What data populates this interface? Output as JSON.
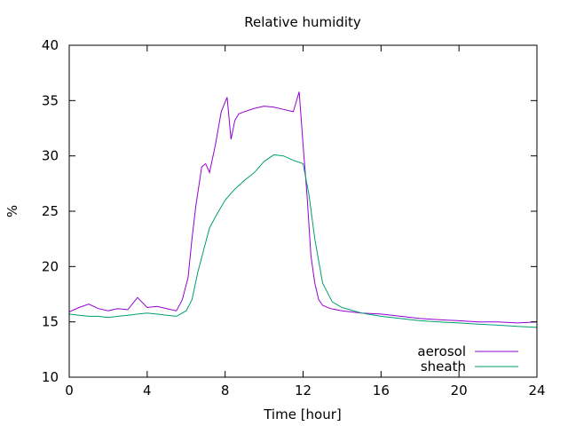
{
  "chart_data": {
    "type": "line",
    "title": "Relative humidity",
    "xlabel": "Time [hour]",
    "ylabel": "%",
    "xlim": [
      0,
      24
    ],
    "ylim": [
      10,
      40
    ],
    "xticks": [
      0,
      4,
      8,
      12,
      16,
      20,
      24
    ],
    "yticks": [
      10,
      15,
      20,
      25,
      30,
      35,
      40
    ],
    "grid": false,
    "legend_position": "bottom-right",
    "series": [
      {
        "name": "aerosol",
        "color": "#9400d3",
        "x": [
          0,
          0.5,
          1,
          1.5,
          2,
          2.5,
          3,
          3.5,
          4,
          4.5,
          5,
          5.5,
          5.8,
          6.1,
          6.3,
          6.5,
          6.8,
          7,
          7.2,
          7.5,
          7.8,
          8.1,
          8.3,
          8.5,
          8.7,
          9,
          9.5,
          10,
          10.5,
          11,
          11.5,
          11.8,
          12,
          12.2,
          12.4,
          12.6,
          12.8,
          13,
          13.4,
          14,
          15,
          16,
          17,
          18,
          19,
          20,
          21,
          22,
          23,
          24
        ],
        "y": [
          15.9,
          16.3,
          16.6,
          16.2,
          16.0,
          16.2,
          16.1,
          17.2,
          16.3,
          16.4,
          16.2,
          16.0,
          17.0,
          19.0,
          22.5,
          25.5,
          29.0,
          29.3,
          28.5,
          31.0,
          34.0,
          35.3,
          31.5,
          33.2,
          33.8,
          34.0,
          34.3,
          34.5,
          34.4,
          34.2,
          34.0,
          35.8,
          31.0,
          26.5,
          21.0,
          18.5,
          17.0,
          16.5,
          16.2,
          16.0,
          15.8,
          15.7,
          15.5,
          15.3,
          15.2,
          15.1,
          15.0,
          15.0,
          14.9,
          15.0
        ]
      },
      {
        "name": "sheath",
        "color": "#009e73",
        "x": [
          0,
          0.5,
          1,
          1.5,
          2,
          2.5,
          3,
          3.5,
          4,
          4.5,
          5,
          5.5,
          6,
          6.3,
          6.6,
          6.9,
          7.2,
          7.6,
          8,
          8.5,
          9,
          9.5,
          10,
          10.5,
          11,
          11.5,
          12,
          12.3,
          12.6,
          13,
          13.5,
          14,
          15,
          16,
          17,
          18,
          19,
          20,
          21,
          22,
          23,
          24
        ],
        "y": [
          15.7,
          15.6,
          15.5,
          15.5,
          15.4,
          15.5,
          15.6,
          15.7,
          15.8,
          15.7,
          15.6,
          15.5,
          16.0,
          17.0,
          19.5,
          21.5,
          23.5,
          24.8,
          26.0,
          27.0,
          27.8,
          28.5,
          29.5,
          30.1,
          30.0,
          29.6,
          29.3,
          26.5,
          22.5,
          18.5,
          16.8,
          16.3,
          15.8,
          15.5,
          15.3,
          15.1,
          15.0,
          14.9,
          14.8,
          14.7,
          14.6,
          14.5
        ]
      }
    ]
  }
}
